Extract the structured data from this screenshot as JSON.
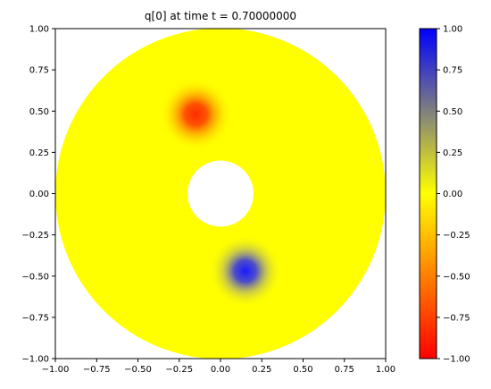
{
  "chart_data": {
    "type": "heatmap",
    "title": "q[0] at time t =     0.70000000",
    "xlabel": "",
    "ylabel": "",
    "xlim": [
      -1.0,
      1.0
    ],
    "ylim": [
      -1.0,
      1.0
    ],
    "domain": {
      "shape": "annulus",
      "inner_radius": 0.2,
      "outer_radius": 1.0
    },
    "background_value": 0.0,
    "blobs": [
      {
        "center": [
          -0.15,
          0.48
        ],
        "peak_value": -0.85,
        "radius": 0.22
      },
      {
        "center": [
          0.15,
          -0.47
        ],
        "peak_value": 0.88,
        "radius": 0.22
      }
    ],
    "x_ticks": [
      "−1.00",
      "−0.75",
      "−0.50",
      "−0.25",
      "0.00",
      "0.25",
      "0.50",
      "0.75",
      "1.00"
    ],
    "y_ticks": [
      "1.00",
      "0.75",
      "0.50",
      "0.25",
      "0.00",
      "−0.25",
      "−0.50",
      "−0.75",
      "−1.00"
    ],
    "x_tick_values": [
      -1.0,
      -0.75,
      -0.5,
      -0.25,
      0.0,
      0.25,
      0.5,
      0.75,
      1.0
    ],
    "y_tick_values": [
      1.0,
      0.75,
      0.5,
      0.25,
      0.0,
      -0.25,
      -0.5,
      -0.75,
      -1.0
    ],
    "colorbar": {
      "range": [
        -1.0,
        1.0
      ],
      "colors": [
        "#ff0000",
        "#ffff00",
        "#0000ff"
      ],
      "ticks": [
        "1.00",
        "0.75",
        "0.50",
        "0.25",
        "0.00",
        "−0.25",
        "−0.50",
        "−0.75",
        "−1.00"
      ],
      "tick_values": [
        1.0,
        0.75,
        0.5,
        0.25,
        0.0,
        -0.25,
        -0.5,
        -0.75,
        -1.0
      ]
    }
  }
}
